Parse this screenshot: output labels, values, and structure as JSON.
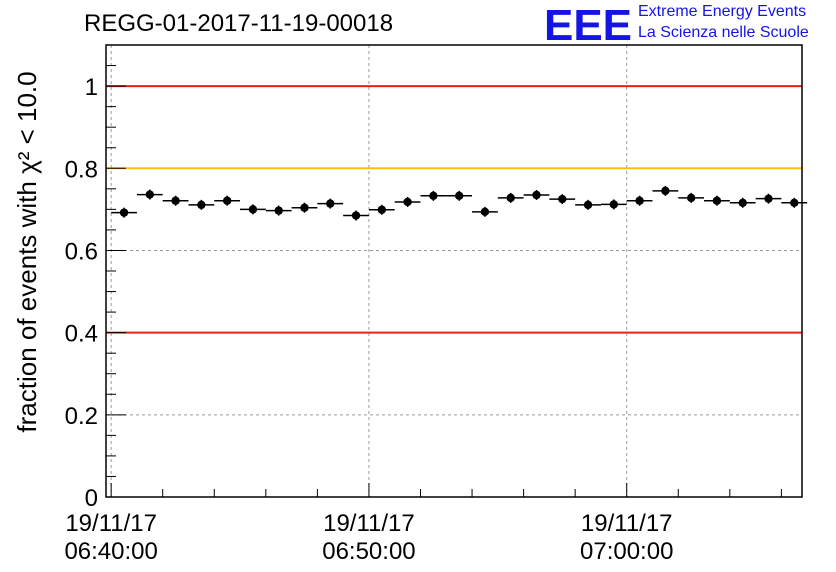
{
  "header": {
    "run_title": "REGG-01-2017-11-19-00018",
    "logo_text": "EEE",
    "logo_line1": "Extreme Energy Events",
    "logo_line2": "La Scienza nelle Scuole"
  },
  "chart_data": {
    "type": "scatter",
    "title": "REGG-01-2017-11-19-00018",
    "ylabel": "fraction of events with χ² < 10.0",
    "xlabel": "",
    "ylim": [
      0,
      1.1
    ],
    "yticks": [
      0,
      0.2,
      0.4,
      0.6,
      0.8,
      1
    ],
    "ytick_labels": [
      "0",
      "0.2",
      "0.4",
      "0.6",
      "0.8",
      "1"
    ],
    "x_unit": "minutes after 19/11/17 06:40:00",
    "xlim": [
      -0.2,
      26.8
    ],
    "xticks": [
      {
        "x": 0,
        "label_date": "19/11/17",
        "label_time": "06:40:00"
      },
      {
        "x": 10,
        "label_date": "19/11/17",
        "label_time": "06:50:00"
      },
      {
        "x": 20,
        "label_date": "19/11/17",
        "label_time": "07:00:00"
      }
    ],
    "grid": true,
    "reference_lines": [
      {
        "y": 1.0,
        "color": "#e8201c"
      },
      {
        "y": 0.8,
        "color": "#ffc000"
      },
      {
        "y": 0.4,
        "color": "#e8201c"
      }
    ],
    "series": [
      {
        "color": "#000000",
        "bin_width": 1,
        "points": [
          {
            "x": 0.5,
            "y": 0.692
          },
          {
            "x": 1.5,
            "y": 0.736
          },
          {
            "x": 2.5,
            "y": 0.721
          },
          {
            "x": 3.5,
            "y": 0.711
          },
          {
            "x": 4.5,
            "y": 0.721
          },
          {
            "x": 5.5,
            "y": 0.7
          },
          {
            "x": 6.5,
            "y": 0.697
          },
          {
            "x": 7.5,
            "y": 0.704
          },
          {
            "x": 8.5,
            "y": 0.714
          },
          {
            "x": 9.5,
            "y": 0.685
          },
          {
            "x": 10.5,
            "y": 0.699
          },
          {
            "x": 11.5,
            "y": 0.718
          },
          {
            "x": 12.5,
            "y": 0.733
          },
          {
            "x": 13.5,
            "y": 0.733
          },
          {
            "x": 14.5,
            "y": 0.694
          },
          {
            "x": 15.5,
            "y": 0.728
          },
          {
            "x": 16.5,
            "y": 0.735
          },
          {
            "x": 17.5,
            "y": 0.725
          },
          {
            "x": 18.5,
            "y": 0.711
          },
          {
            "x": 19.5,
            "y": 0.712
          },
          {
            "x": 20.5,
            "y": 0.721
          },
          {
            "x": 21.5,
            "y": 0.745
          },
          {
            "x": 22.5,
            "y": 0.728
          },
          {
            "x": 23.5,
            "y": 0.721
          },
          {
            "x": 24.5,
            "y": 0.716
          },
          {
            "x": 25.5,
            "y": 0.726
          },
          {
            "x": 26.5,
            "y": 0.716
          }
        ]
      }
    ]
  }
}
